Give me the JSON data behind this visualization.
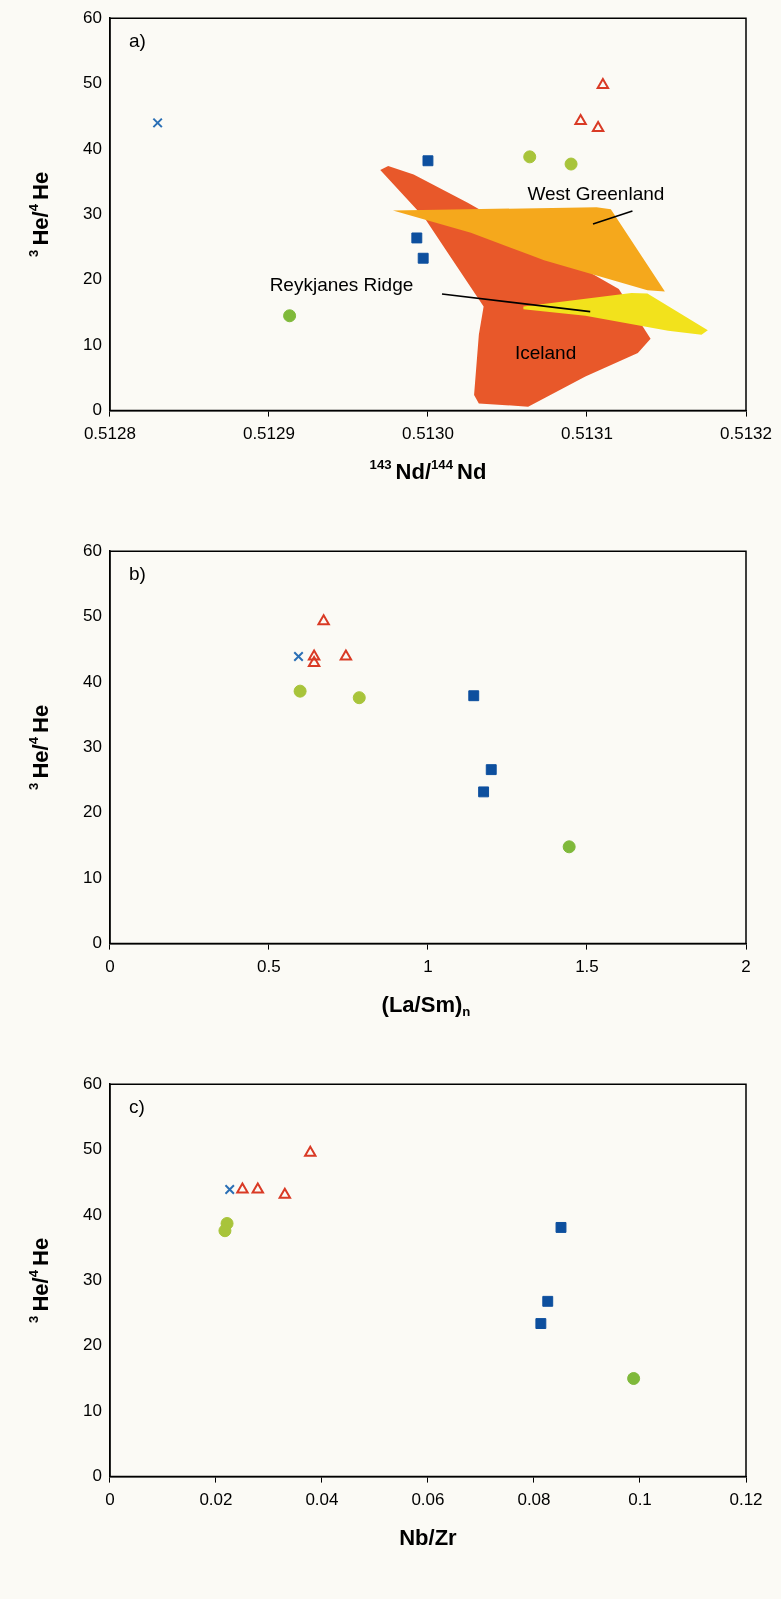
{
  "chart_data": [
    {
      "type": "scatter",
      "xlabel": "$^{143}$Nd/$^{144}$Nd",
      "ylabel": "$^{3}$He/$^{4}$He",
      "xlim": [
        0.5128,
        0.5132
      ],
      "xticks": [
        0.5128,
        0.5129,
        {
          "value": 0.513,
          "label": "0.5130"
        },
        0.5131,
        0.5132
      ],
      "ylim": [
        0,
        60
      ],
      "yticks": [
        0,
        10,
        20,
        30,
        40,
        50,
        60
      ],
      "series": [
        {
          "type": "area",
          "color": "#e8582a",
          "x": [
            0.51297,
            0.512975,
            0.512991,
            0.513025,
            0.51312,
            0.51314,
            0.513132,
            0.513099,
            0.513063,
            0.513032,
            0.513029,
            0.513032,
            0.513035,
            0.512998
          ],
          "values": [
            36.8,
            37.4,
            36.1,
            31.8,
            18.6,
            11.0,
            8.8,
            5.2,
            0.6,
            1.1,
            2.4,
            11.6,
            15.9,
            29.4
          ]
        },
        {
          "type": "area",
          "color": "#f5a81c",
          "x": [
            0.512978,
            0.513106,
            0.513115,
            0.513149,
            0.513138,
            0.513073,
            0.513027
          ],
          "values": [
            30.6,
            31.1,
            30.8,
            18.2,
            18.4,
            23.0,
            27.2
          ]
        },
        {
          "type": "area",
          "color": "#f2e21c",
          "x": [
            0.51306,
            0.513128,
            0.513138,
            0.513176,
            0.513172,
            0.513151,
            0.513099,
            0.51306
          ],
          "values": [
            15.9,
            18.0,
            17.9,
            12.3,
            11.6,
            12.2,
            14.5,
            15.5
          ]
        },
        {
          "type": "scatter",
          "marker": "cross",
          "color": "#2a6fb5",
          "x": [
            0.51283
          ],
          "values": [
            44.0
          ]
        },
        {
          "type": "scatter",
          "marker": "square",
          "color": "#0d4f9e",
          "x": [
            0.513,
            0.512993,
            0.512997
          ],
          "values": [
            38.2,
            26.4,
            23.3
          ]
        },
        {
          "type": "scatter",
          "marker": "circle",
          "color": "#7fb93a",
          "x": [
            0.512913
          ],
          "values": [
            14.5
          ]
        },
        {
          "type": "scatter",
          "marker": "circle",
          "color": "#a8c43a",
          "x": [
            0.513064,
            0.51309
          ],
          "values": [
            38.8,
            37.7
          ]
        },
        {
          "type": "scatter",
          "marker": "triangle",
          "color": "#d93a25",
          "x": [
            0.51311,
            0.513096,
            0.513107
          ],
          "values": [
            49.8,
            44.3,
            43.2
          ]
        }
      ],
      "annotations": [
        "a)",
        "West Greenland",
        "Reykjanes Ridge",
        "Iceland"
      ]
    },
    {
      "type": "scatter",
      "xlabel": "(La/Sm)$_{n}$",
      "ylabel": "$^{3}$He/$^{4}$He",
      "xlim": [
        0,
        2
      ],
      "xticks": [
        0,
        0.5,
        1,
        1.5,
        2
      ],
      "ylim": [
        0,
        60
      ],
      "yticks": [
        0,
        10,
        20,
        30,
        40,
        50,
        60
      ],
      "series": [
        {
          "type": "scatter",
          "marker": "cross",
          "color": "#2a6fb5",
          "x": [
            0.593
          ],
          "values": [
            43.9
          ]
        },
        {
          "type": "scatter",
          "marker": "square",
          "color": "#0d4f9e",
          "x": [
            1.144,
            1.199,
            1.175
          ],
          "values": [
            37.9,
            26.6,
            23.2
          ]
        },
        {
          "type": "scatter",
          "marker": "circle",
          "color": "#7fb93a",
          "x": [
            1.444
          ],
          "values": [
            14.8
          ]
        },
        {
          "type": "scatter",
          "marker": "circle",
          "color": "#a8c43a",
          "x": [
            0.598,
            0.784
          ],
          "values": [
            38.6,
            37.6
          ]
        },
        {
          "type": "scatter",
          "marker": "triangle",
          "color": "#d93a25",
          "x": [
            0.672,
            0.642,
            0.642,
            0.742
          ],
          "values": [
            49.3,
            43.9,
            42.9,
            43.9
          ]
        }
      ],
      "annotations": [
        "b)"
      ]
    },
    {
      "type": "scatter",
      "xlabel": "Nb/Zr",
      "ylabel": "$^{3}$He/$^{4}$He",
      "xlim": [
        0,
        0.12
      ],
      "xticks": [
        0,
        0.02,
        0.04,
        0.06,
        0.08,
        0.1,
        0.12
      ],
      "ylim": [
        0,
        60
      ],
      "yticks": [
        0,
        10,
        20,
        30,
        40,
        50,
        60
      ],
      "series": [
        {
          "type": "scatter",
          "marker": "cross",
          "color": "#2a6fb5",
          "x": [
            0.0226
          ],
          "values": [
            43.9
          ]
        },
        {
          "type": "scatter",
          "marker": "square",
          "color": "#0d4f9e",
          "x": [
            0.0851,
            0.0826,
            0.0813
          ],
          "values": [
            38.1,
            26.8,
            23.4
          ]
        },
        {
          "type": "scatter",
          "marker": "circle",
          "color": "#7fb93a",
          "x": [
            0.0988
          ],
          "values": [
            15.0
          ]
        },
        {
          "type": "scatter",
          "marker": "circle",
          "color": "#a8c43a",
          "x": [
            0.0221,
            0.0217
          ],
          "values": [
            38.7,
            37.6
          ]
        },
        {
          "type": "scatter",
          "marker": "triangle",
          "color": "#d93a25",
          "x": [
            0.025,
            0.0279,
            0.033,
            0.0378
          ],
          "values": [
            43.9,
            43.9,
            43.1,
            49.5
          ]
        }
      ],
      "annotations": [
        "c)"
      ]
    }
  ]
}
